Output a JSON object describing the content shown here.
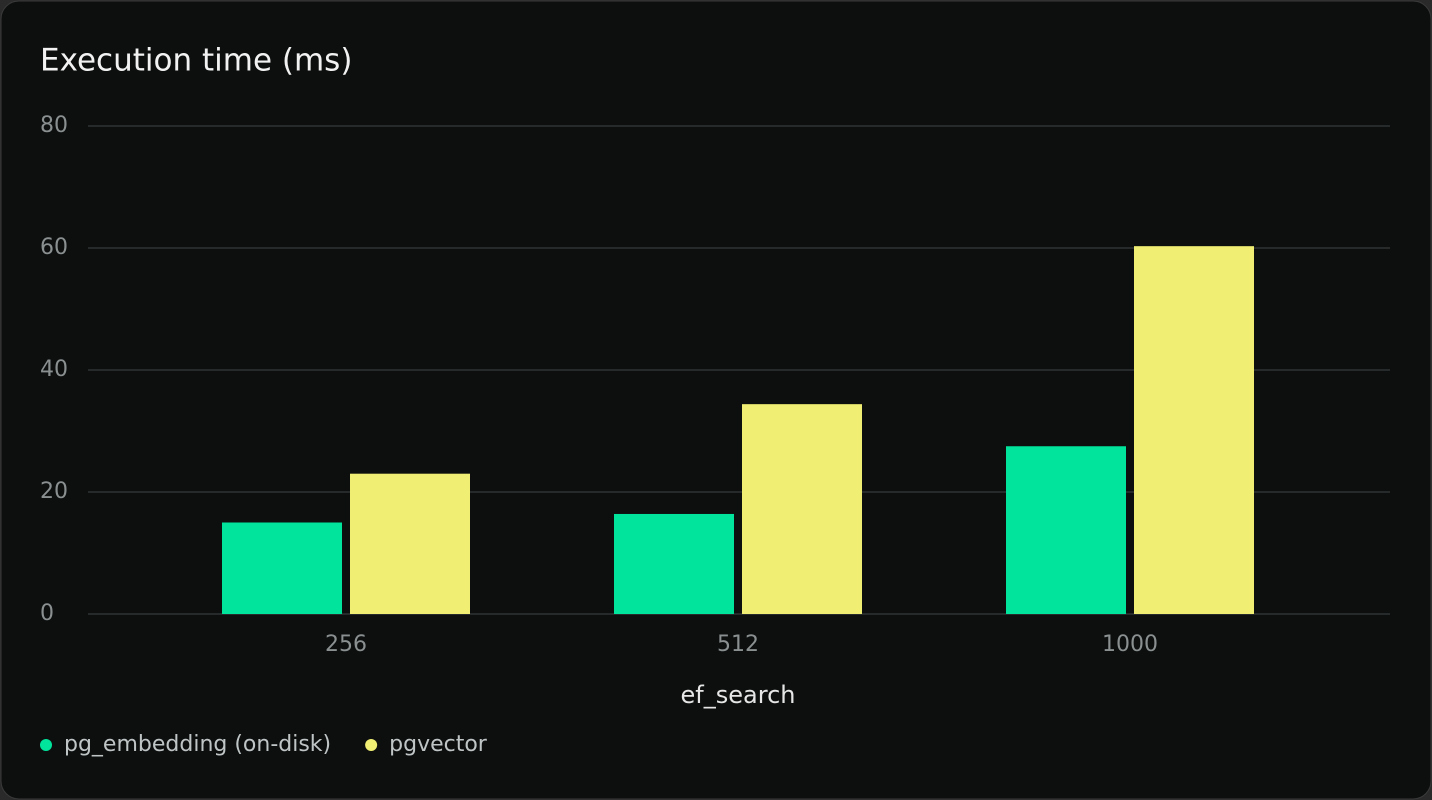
{
  "chart_data": {
    "type": "bar",
    "title": "Execution time (ms)",
    "x_label": "ef_search",
    "categories": [
      "256",
      "512",
      "1000"
    ],
    "series": [
      {
        "name": "pg_embedding (on-disk)",
        "color": "#00e59b",
        "values": [
          15,
          16.4,
          27.5
        ]
      },
      {
        "name": "pgvector",
        "color": "#f0ef73",
        "values": [
          23,
          34.4,
          60.3
        ]
      }
    ],
    "ylim": [
      0,
      80
    ],
    "yticks": [
      0,
      20,
      40,
      60,
      80
    ],
    "grid": true,
    "legend": "bottom-left"
  }
}
